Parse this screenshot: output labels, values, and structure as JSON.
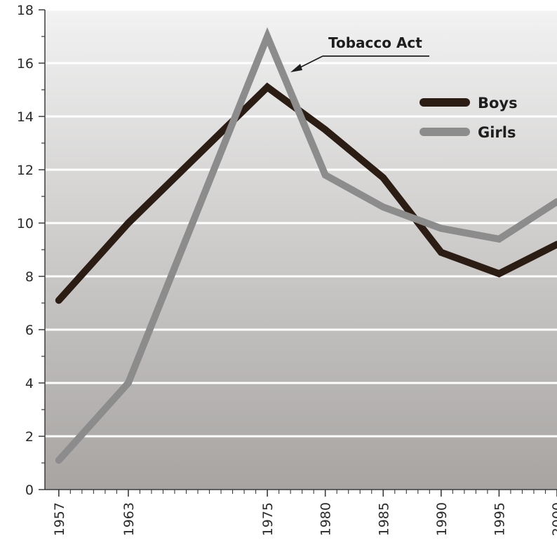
{
  "chart_data": {
    "type": "line",
    "x": [
      1957,
      1963,
      1975,
      1980,
      1985,
      1990,
      1995,
      2000
    ],
    "x_tick_labels": [
      "1957",
      "1963",
      "1975",
      "1980",
      "1985",
      "1990",
      "1995",
      "2000"
    ],
    "series": [
      {
        "name": "Boys",
        "values": [
          7.1,
          10.0,
          15.1,
          13.5,
          11.7,
          8.9,
          8.1,
          9.2
        ],
        "color": "#2b1d14"
      },
      {
        "name": "Girls",
        "values": [
          1.1,
          4.0,
          17.0,
          11.8,
          10.6,
          9.8,
          9.4,
          10.8
        ],
        "color": "#8c8c8c"
      }
    ],
    "ylim": [
      0,
      18
    ],
    "y_ticks": [
      0,
      2,
      4,
      6,
      8,
      10,
      12,
      14,
      16,
      18
    ],
    "y_tick_labels": [
      "0",
      "2",
      "4",
      "6",
      "8",
      "10",
      "12",
      "14",
      "16",
      "18"
    ],
    "annotation": {
      "text": "Tobacco Act",
      "x": 1975,
      "y": 17.0
    },
    "legend_position": "top-right",
    "grid": true,
    "title": "",
    "xlabel": "",
    "ylabel": ""
  }
}
